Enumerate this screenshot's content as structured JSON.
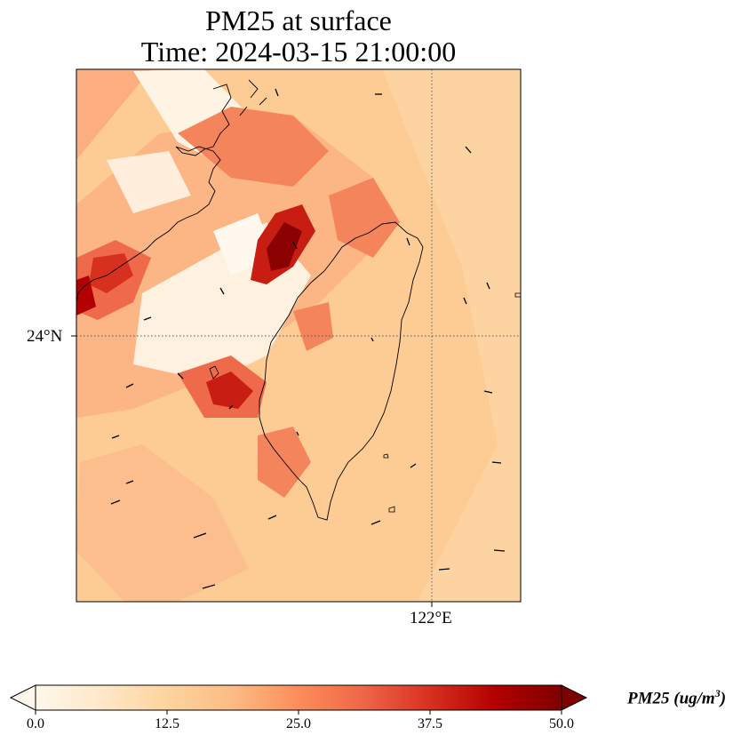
{
  "title": {
    "line1": "PM25 at surface",
    "line2": "Time: 2024-03-15 21:00:00"
  },
  "map": {
    "lat_tick_label": "24°N",
    "lon_tick_label": "122°E",
    "gridline_style": "dotted",
    "coastline_color": "#000000",
    "wind_vectors_shown": true
  },
  "colorbar": {
    "label_main": "PM25 (ug/m",
    "label_sup": "3",
    "label_close": ")",
    "ticks": [
      "0.0",
      "12.5",
      "25.0",
      "37.5",
      "50.0"
    ],
    "colormap": "OrRd",
    "colors": [
      "#fff7ec",
      "#fee8c8",
      "#fdd49e",
      "#fdbb84",
      "#fc8d59",
      "#ef6548",
      "#d7301f",
      "#b30000",
      "#7f0000"
    ],
    "extend": "both"
  }
}
